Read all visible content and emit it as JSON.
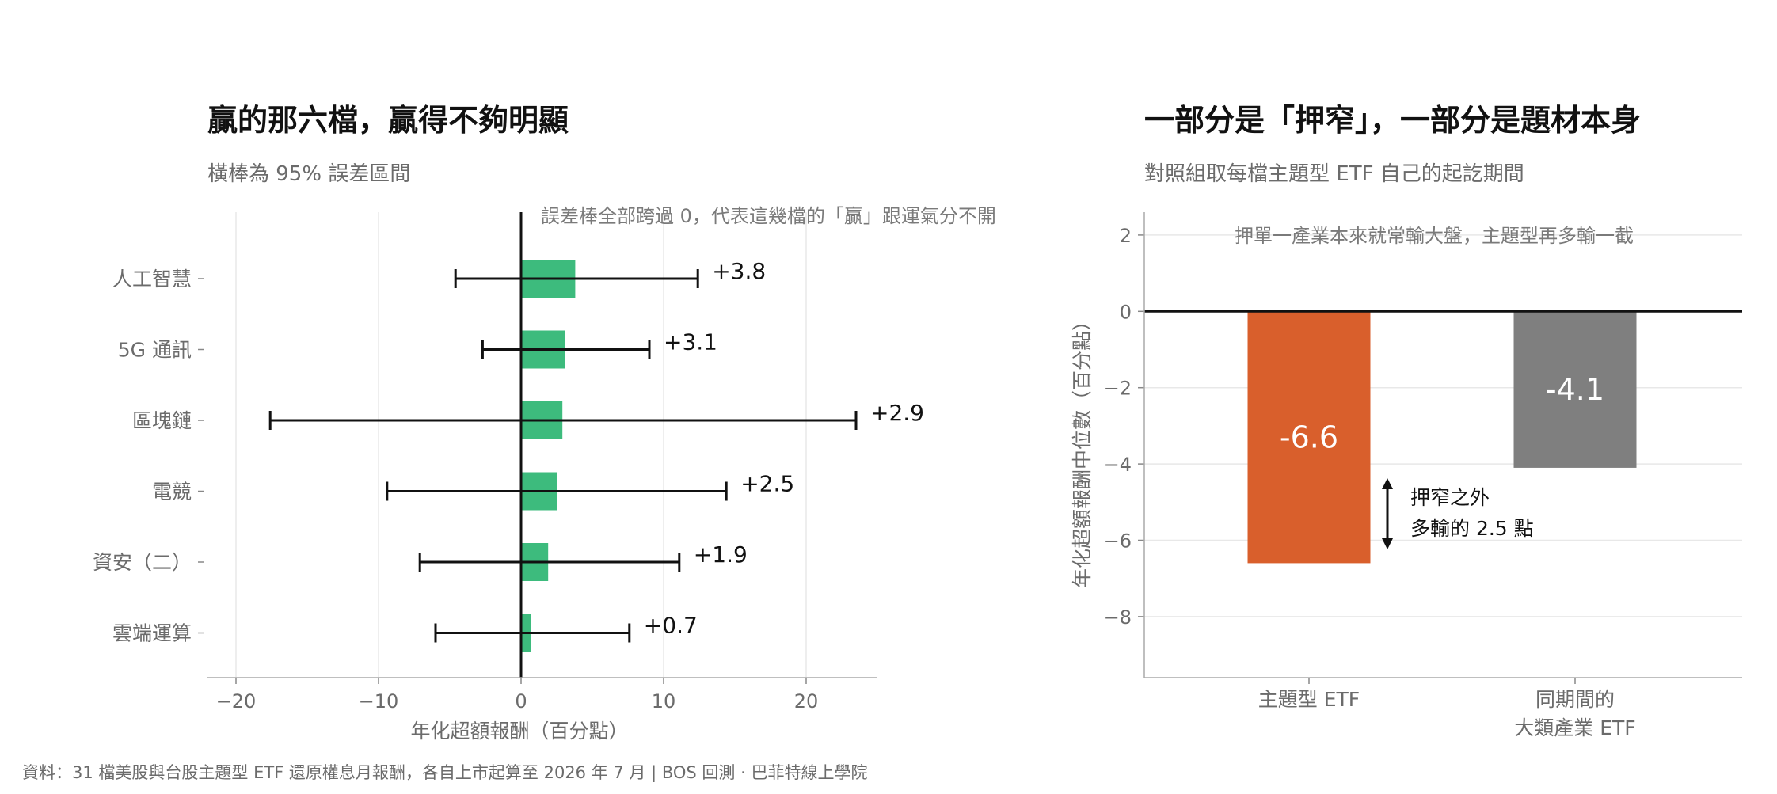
{
  "chart_data": [
    {
      "type": "bar",
      "orientation": "horizontal",
      "title": "贏的那六檔，贏得不夠明顯",
      "subtitle": "橫棒為 95% 誤差區間",
      "xlabel": "年化超額報酬（百分點）",
      "xlim": [
        -22,
        25
      ],
      "xticks": [
        -20,
        -10,
        0,
        10,
        20
      ],
      "xtick_labels": [
        "−20",
        "−10",
        "0",
        "10",
        "20"
      ],
      "grid": "vertical",
      "categories": [
        "人工智慧",
        "5G 通訊",
        "區塊鏈",
        "電競",
        "資安（二）",
        "雲端運算"
      ],
      "values": [
        3.8,
        3.1,
        2.9,
        2.5,
        1.9,
        0.7
      ],
      "ci_low": [
        -4.6,
        -2.7,
        -17.6,
        -9.4,
        -7.1,
        -6.0
      ],
      "ci_high": [
        12.4,
        9.0,
        23.5,
        14.4,
        11.1,
        7.6
      ],
      "data_labels": [
        "+3.8",
        "+3.1",
        "+2.9",
        "+2.5",
        "+1.9",
        "+0.7"
      ],
      "annotation": "誤差棒全部跨過 0，代表這幾檔的「贏」跟運氣分不開",
      "colors": {
        "bar": "#3dbb7d",
        "error": "#111111",
        "zero_line": "#111111"
      }
    },
    {
      "type": "bar",
      "title": "一部分是「押窄」，一部分是題材本身",
      "subtitle": "對照組取每檔主題型 ETF 自己的起訖期間",
      "ylabel": "年化超額報酬中位數（百分點）",
      "ylim": [
        -9.6,
        2.6
      ],
      "yticks": [
        2,
        0,
        -2,
        -4,
        -6,
        -8
      ],
      "ytick_labels": [
        "2",
        "0",
        "−2",
        "−4",
        "−6",
        "−8"
      ],
      "grid": "horizontal",
      "categories": [
        [
          "主題型 ETF"
        ],
        [
          "同期間的",
          "大類產業 ETF"
        ]
      ],
      "values": [
        -6.6,
        -4.1
      ],
      "data_labels": [
        "-6.6",
        "-4.1"
      ],
      "colors": {
        "bars": [
          "#d95f2c",
          "#7f7f7f"
        ]
      },
      "note": "押單一產業本來就常輸大盤，主題型再多輸一截",
      "bracket_annotation": [
        "押窄之外",
        "多輸的 2.5 點"
      ]
    }
  ],
  "source": "資料：31 檔美股與台股主題型 ETF 還原權息月報酬，各自上市起算至 2026 年 7 月 | BOS 回測 · 巴菲特線上學院"
}
